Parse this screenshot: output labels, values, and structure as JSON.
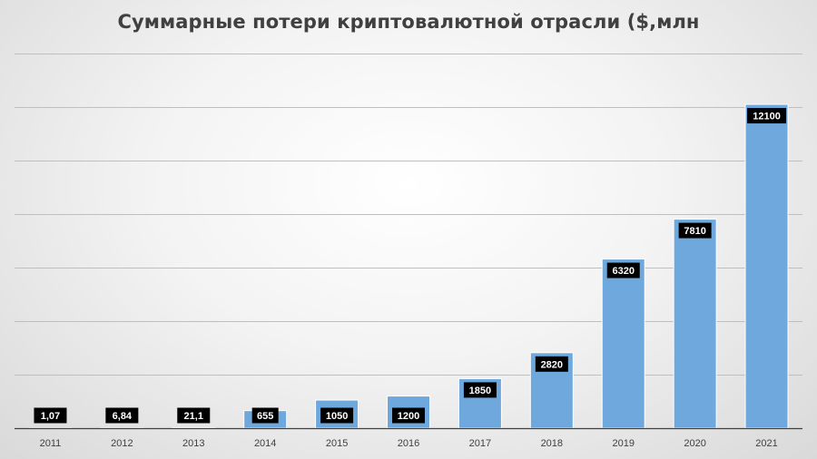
{
  "chart_data": {
    "type": "bar",
    "title": "Суммарные потери криптовалютной отрасли ($,млн",
    "xlabel": "",
    "ylabel": "",
    "categories": [
      "2011",
      "2012",
      "2013",
      "2014",
      "2015",
      "2016",
      "2017",
      "2018",
      "2019",
      "2020",
      "2021"
    ],
    "values": [
      1.07,
      6.84,
      21.1,
      655,
      1050,
      1200,
      1850,
      2820,
      6320,
      7810,
      12100
    ],
    "data_labels": [
      "1,07",
      "6,84",
      "21,1",
      "655",
      "1050",
      "1200",
      "1850",
      "2820",
      "6320",
      "7810",
      "12100"
    ],
    "ylim": [
      0,
      14000
    ],
    "y_gridline_step": 2000,
    "y_tick_labels_shown": false,
    "grid": true,
    "legend": "none",
    "colors": {
      "bar": "#6fa8dc",
      "label_background": "#000000",
      "label_text": "#ffffff",
      "gridline": "#bfbfbf",
      "axis": "#404040"
    }
  }
}
